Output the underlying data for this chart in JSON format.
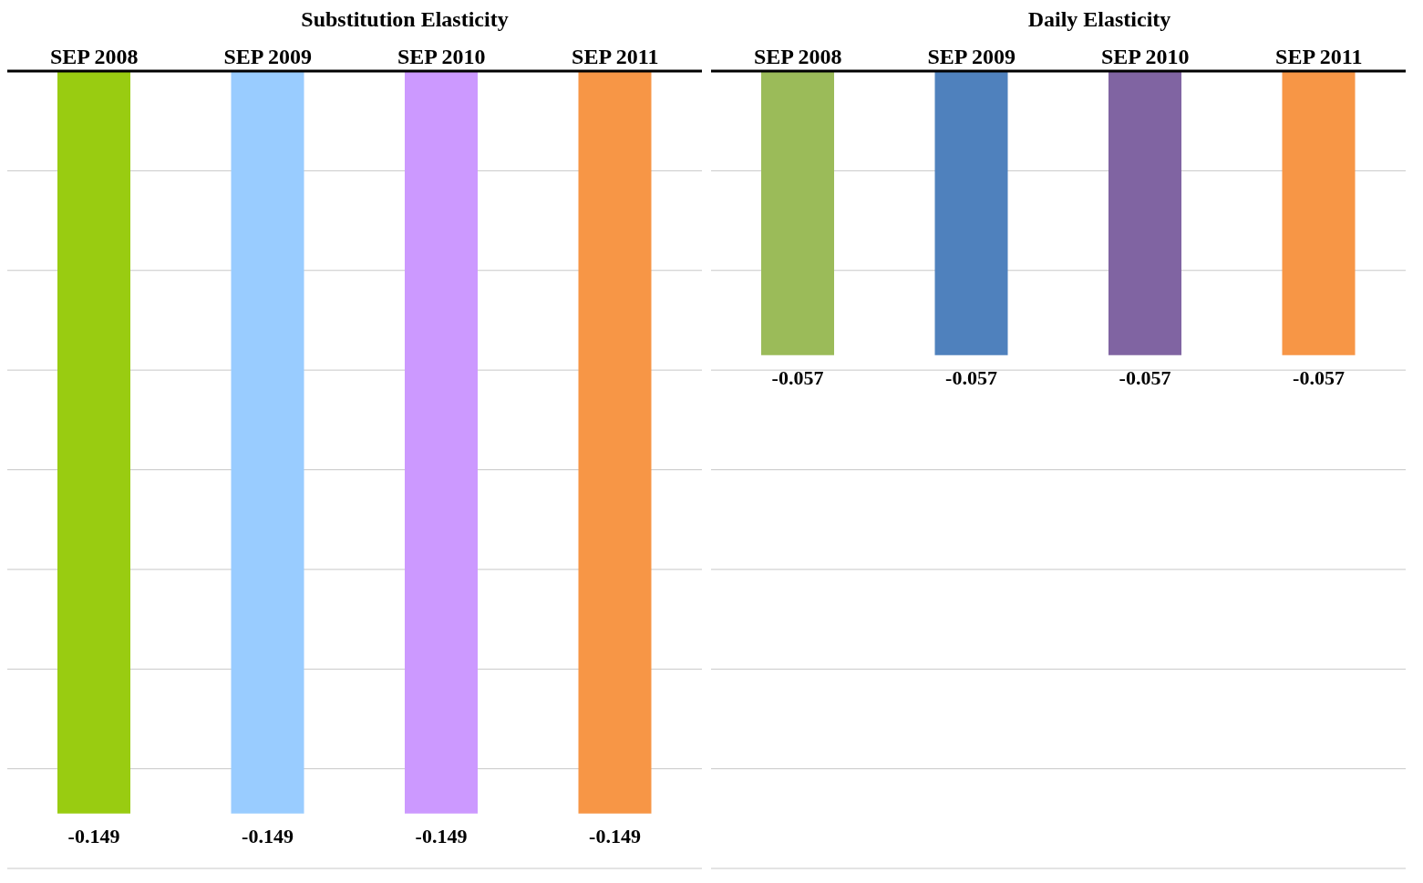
{
  "chart_data": [
    {
      "type": "bar",
      "title": "Substitution Elasticity",
      "categories": [
        "SEP 2008",
        "SEP 2009",
        "SEP 2010",
        "SEP 2011"
      ],
      "values": [
        -0.149,
        -0.149,
        -0.149,
        -0.149
      ],
      "colors": [
        "#99cc11",
        "#99ccff",
        "#cc99ff",
        "#f79646"
      ],
      "ylim": [
        -0.16,
        0
      ],
      "grid": "y",
      "tick_labels": "x",
      "data_labels": true
    },
    {
      "type": "bar",
      "title": "Daily Elasticity",
      "categories": [
        "SEP 2008",
        "SEP 2009",
        "SEP 2010",
        "SEP 2011"
      ],
      "values": [
        -0.057,
        -0.057,
        -0.057,
        -0.057
      ],
      "colors": [
        "#9bbb59",
        "#4f81bd",
        "#8064a2",
        "#f79646"
      ],
      "ylim": [
        -0.16,
        0
      ],
      "grid": "y",
      "tick_labels": "x",
      "data_labels": true
    }
  ]
}
